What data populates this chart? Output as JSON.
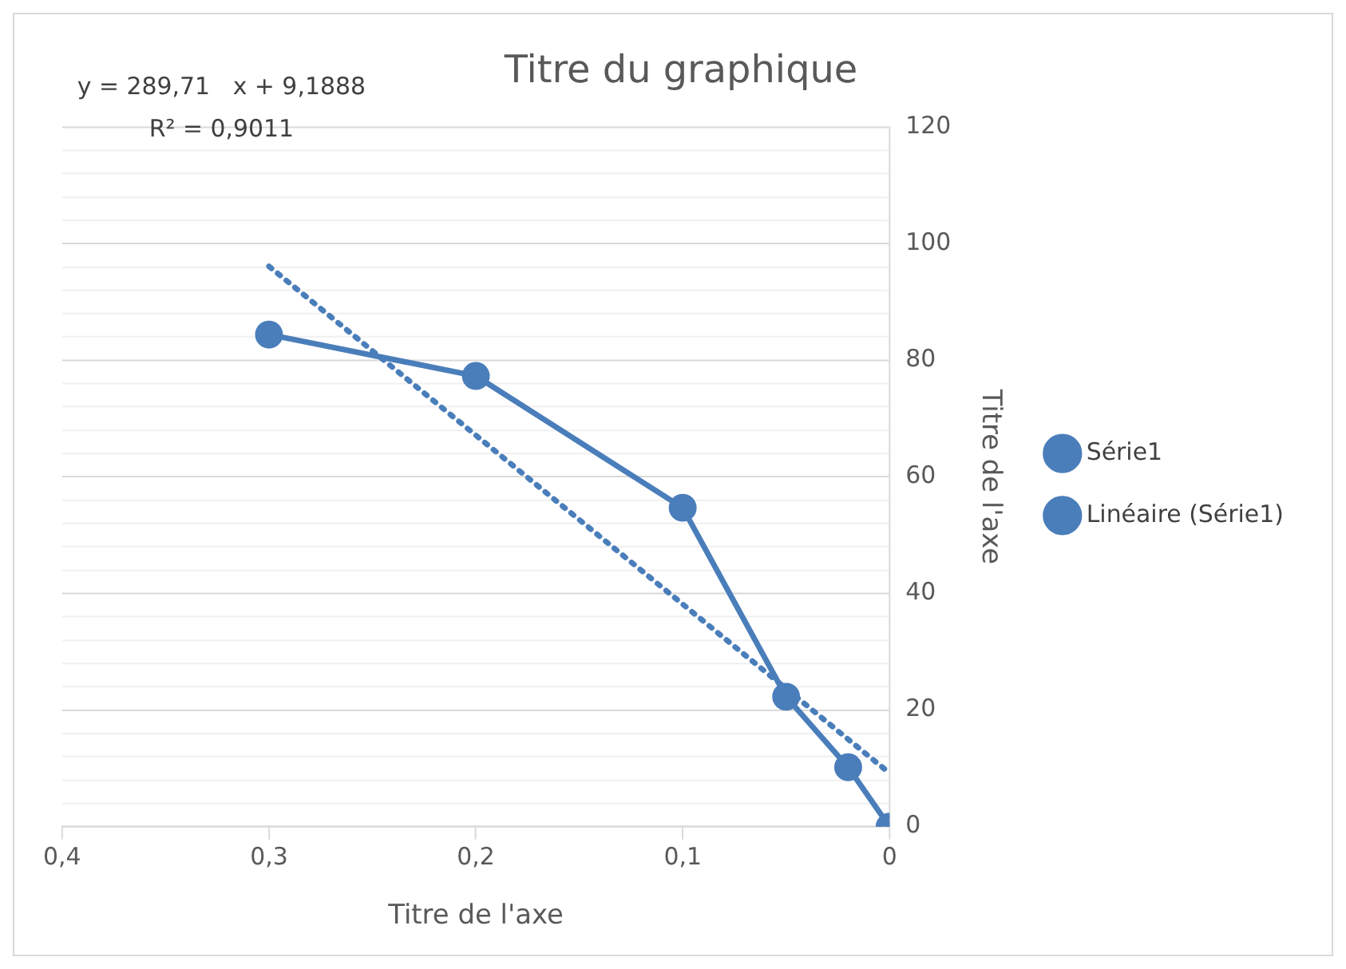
{
  "chart_data": {
    "type": "line",
    "title": "Titre du graphique",
    "xlabel": "Titre de l'axe",
    "ylabel": "Titre de l'axe",
    "annotations": [
      "y = 289,71   x + 9,1888",
      "R² = 0,9011"
    ],
    "x": [
      0.3,
      0.2,
      0.1,
      0.05,
      0.02,
      0
    ],
    "series": [
      {
        "name": "Série1",
        "color": "#4a7ebb",
        "values": [
          84.4,
          77.3,
          54.7,
          22.3,
          10.2,
          0
        ],
        "marker": "circle",
        "line_style": "solid"
      },
      {
        "name": "Linéaire (Série1)",
        "color": "#4a7ebb",
        "type": "line",
        "x": [
          0.3,
          0
        ],
        "values": [
          96.1,
          9.19
        ],
        "marker": "none",
        "line_style": "dotted"
      }
    ],
    "xlim": [
      0.4,
      0
    ],
    "xticks": [
      {
        "value": 0.4,
        "label": "0,4"
      },
      {
        "value": 0.3,
        "label": "0,3"
      },
      {
        "value": 0.2,
        "label": "0,2"
      },
      {
        "value": 0.1,
        "label": "0,1"
      },
      0
    ],
    "ylim": [
      0,
      120
    ],
    "yticks": [
      0,
      {
        "value": 4,
        "label": null
      },
      {
        "value": 8,
        "label": null
      },
      {
        "value": 12,
        "label": null
      },
      {
        "value": 16,
        "label": null
      },
      20,
      {
        "value": 24,
        "label": null
      },
      {
        "value": 28,
        "label": null
      },
      {
        "value": 32,
        "label": null
      },
      {
        "value": 36,
        "label": null
      },
      40,
      {
        "value": 44,
        "label": null
      },
      {
        "value": 48,
        "label": null
      },
      {
        "value": 52,
        "label": null
      },
      {
        "value": 56,
        "label": null
      },
      60,
      {
        "value": 64,
        "label": null
      },
      {
        "value": 68,
        "label": null
      },
      {
        "value": 72,
        "label": null
      },
      {
        "value": 76,
        "label": null
      },
      80,
      {
        "value": 84,
        "label": null
      },
      {
        "value": 88,
        "label": null
      },
      {
        "value": 92,
        "label": null
      },
      {
        "value": 96,
        "label": null
      },
      100,
      {
        "value": 104,
        "label": null
      },
      {
        "value": 108,
        "label": null
      },
      {
        "value": 112,
        "label": null
      },
      {
        "value": 116,
        "label": null
      },
      120
    ],
    "grid": "y",
    "legend": "right"
  }
}
